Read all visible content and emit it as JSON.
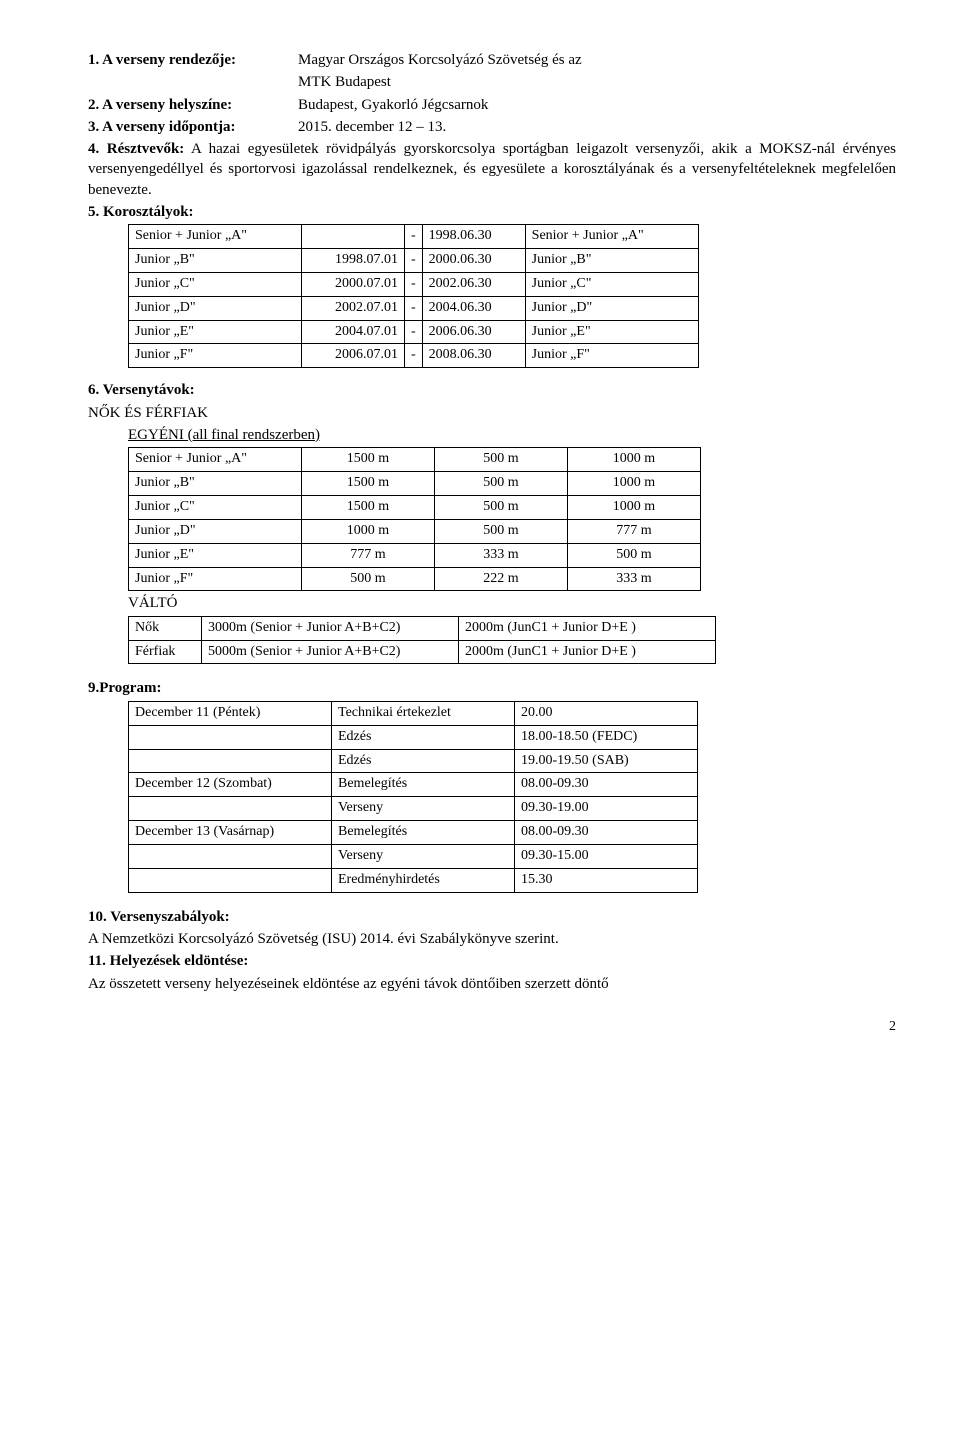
{
  "section1": {
    "label": "1. A verseny rendezője:",
    "line1": "Magyar Országos Korcsolyázó Szövetség és az",
    "line2": "MTK Budapest"
  },
  "section2": {
    "label": "2. A verseny helyszíne:",
    "value": "Budapest, Gyakorló Jégcsarnok"
  },
  "section3": {
    "label": "3. A verseny időpontja:",
    "value": "2015. december 12 – 13."
  },
  "section4": {
    "label": "4. Résztvevők:",
    "body": "A hazai egyesületek rövidpályás gyorskorcsolya sportágban leigazolt versenyzői, akik a MOKSZ-nál érvényes versenyengedéllyel és sportorvosi igazolással rendelkeznek, és egyesülete a korosztályának és a versenyfeltételeknek megfelelően benevezte."
  },
  "section5": {
    "label": "5. Korosztályok:"
  },
  "t1": {
    "rows": [
      [
        "Senior + Junior „A\"",
        "",
        "-",
        "1998.06.30",
        "Senior + Junior „A\""
      ],
      [
        "Junior „B\"",
        "1998.07.01",
        "-",
        "2000.06.30",
        "Junior „B\""
      ],
      [
        "Junior „C\"",
        "2000.07.01",
        "-",
        "2002.06.30",
        "Junior „C\""
      ],
      [
        "Junior „D\"",
        "2002.07.01",
        "-",
        "2004.06.30",
        "Junior „D\""
      ],
      [
        "Junior „E\"",
        "2004.07.01",
        "-",
        "2006.06.30",
        "Junior „E\""
      ],
      [
        "Junior „F\"",
        "2006.07.01",
        "-",
        "2008.06.30",
        "Junior „F\""
      ]
    ]
  },
  "section6": {
    "label": "6. Versenytávok:",
    "sub1": "NŐK ÉS FÉRFIAK",
    "sub2": "EGYÉNI (all final rendszerben)"
  },
  "t2": {
    "rows": [
      [
        "Senior + Junior „A\"",
        "1500 m",
        "500 m",
        "1000 m"
      ],
      [
        "Junior „B\"",
        "1500 m",
        "500 m",
        "1000 m"
      ],
      [
        "Junior „C\"",
        "1500 m",
        "500 m",
        "1000 m"
      ],
      [
        "Junior „D\"",
        "1000 m",
        "500 m",
        "777 m"
      ],
      [
        "Junior „E\"",
        "777 m",
        "333 m",
        "500 m"
      ],
      [
        "Junior „F\"",
        "500 m",
        "222 m",
        "333 m"
      ]
    ]
  },
  "valto": "VÁLTÓ",
  "t3": {
    "rows": [
      [
        "Nők",
        "3000m (Senior + Junior A+B+C2)",
        "2000m  (JunC1 + Junior D+E )"
      ],
      [
        "Férfiak",
        "5000m (Senior + Junior A+B+C2)",
        "2000m  (JunC1 + Junior D+E )"
      ]
    ]
  },
  "section9": {
    "label": "9.Program:"
  },
  "t4": {
    "rows": [
      [
        "December 11 (Péntek)",
        "Technikai értekezlet",
        "20.00"
      ],
      [
        "",
        "Edzés",
        "18.00-18.50 (FEDC)"
      ],
      [
        "",
        "Edzés",
        "19.00-19.50 (SAB)"
      ],
      [
        "December 12 (Szombat)",
        "Bemelegítés",
        "08.00-09.30"
      ],
      [
        "",
        "Verseny",
        "09.30-19.00"
      ],
      [
        "December 13 (Vasárnap)",
        "Bemelegítés",
        "08.00-09.30"
      ],
      [
        "",
        "Verseny",
        "09.30-15.00"
      ],
      [
        "",
        "Eredményhirdetés",
        "15.30"
      ]
    ]
  },
  "section10": {
    "label": "10. Versenyszabályok:",
    "body": "A Nemzetközi Korcsolyázó Szövetség (ISU) 2014. évi Szabálykönyve szerint."
  },
  "section11": {
    "label": "11. Helyezések eldöntése:",
    "body": "Az összetett verseny helyezéseinek eldöntése az egyéni távok döntőiben szerzett döntő"
  },
  "pageNum": "2"
}
